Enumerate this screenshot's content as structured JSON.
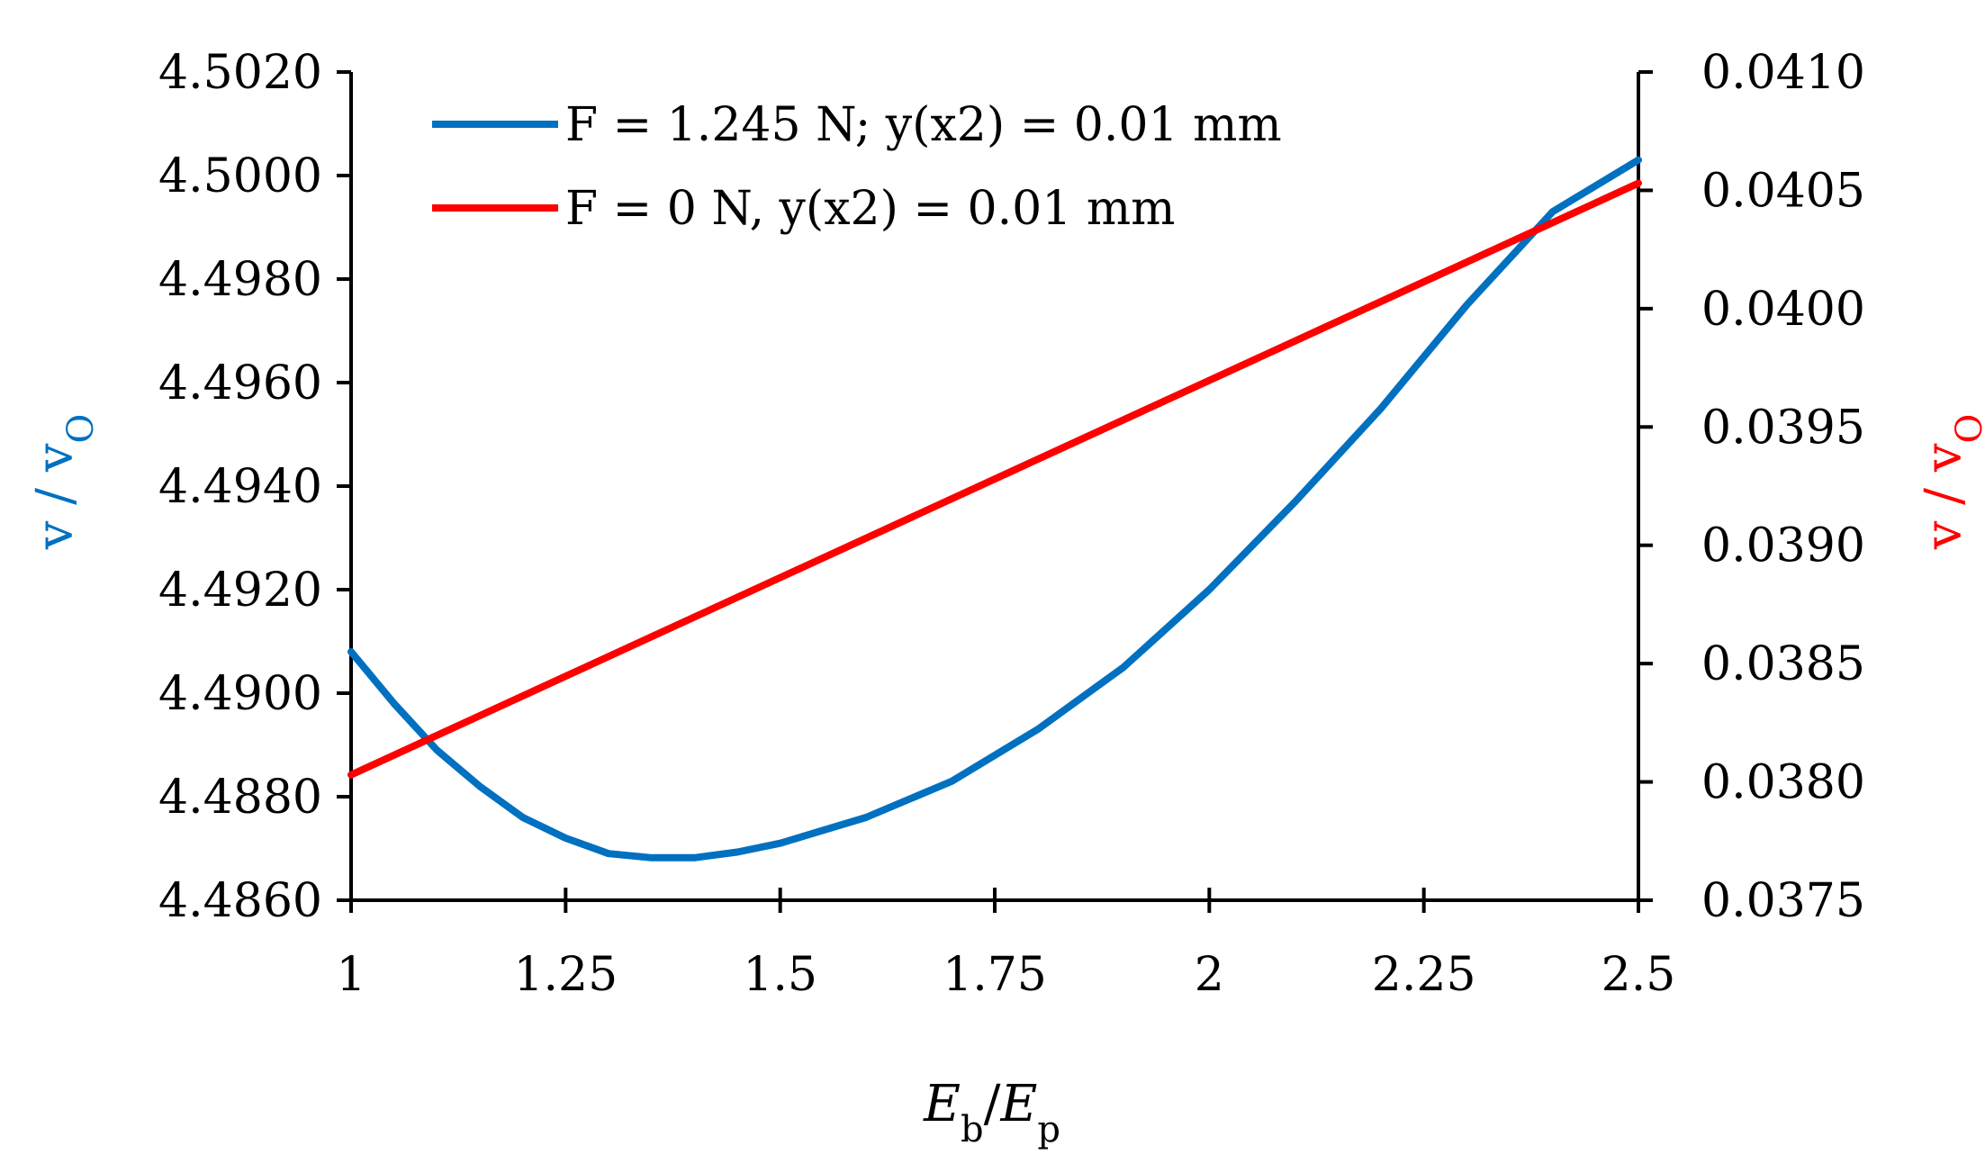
{
  "chart_data": {
    "type": "line",
    "xlabel": {
      "main_1": "E",
      "sub_1": "b",
      "sep": "/",
      "main_2": "E",
      "sub_2": "p"
    },
    "ylabel_left": {
      "main": "v / v",
      "sub": "O",
      "color": "#0070C0"
    },
    "ylabel_right": {
      "main": "v / v",
      "sub": "O",
      "color": "#FF0000"
    },
    "xlim": [
      1,
      2.5
    ],
    "ylim_left": [
      4.486,
      4.502
    ],
    "ylim_right": [
      0.0375,
      0.041
    ],
    "x_ticks": [
      "1",
      "1.25",
      "1.5",
      "1.75",
      "2",
      "2.25",
      "2.5"
    ],
    "x_tick_values": [
      1,
      1.25,
      1.5,
      1.75,
      2,
      2.25,
      2.5
    ],
    "y_left_ticks": [
      "4.4860",
      "4.4880",
      "4.4900",
      "4.4920",
      "4.4940",
      "4.4960",
      "4.4980",
      "4.5000",
      "4.5020"
    ],
    "y_left_tick_values": [
      4.486,
      4.488,
      4.49,
      4.492,
      4.494,
      4.496,
      4.498,
      4.5,
      4.502
    ],
    "y_right_ticks": [
      "0.0375",
      "0.0380",
      "0.0385",
      "0.0390",
      "0.0395",
      "0.0400",
      "0.0405",
      "0.0410"
    ],
    "y_right_tick_values": [
      0.0375,
      0.038,
      0.0385,
      0.039,
      0.0395,
      0.04,
      0.0405,
      0.041
    ],
    "grid": false,
    "legend_position": "top-left",
    "series": [
      {
        "name": "F = 1.245 N; y(x2) = 0.01 mm",
        "color": "#0070C0",
        "axis": "left",
        "x": [
          1.0,
          1.05,
          1.1,
          1.15,
          1.2,
          1.25,
          1.3,
          1.35,
          1.4,
          1.45,
          1.5,
          1.6,
          1.7,
          1.8,
          1.9,
          2.0,
          2.1,
          2.2,
          2.3,
          2.4,
          2.5
        ],
        "y": [
          4.4908,
          4.4898,
          4.4889,
          4.4882,
          4.4876,
          4.4872,
          4.4869,
          4.48682,
          4.48682,
          4.48693,
          4.4871,
          4.4876,
          4.4883,
          4.4893,
          4.4905,
          4.492,
          4.4937,
          4.4955,
          4.4975,
          4.4993,
          4.5003
        ]
      },
      {
        "name": "F = 0 N, y(x2) = 0.01 mm",
        "color": "#FF0000",
        "axis": "right",
        "x": [
          1.0,
          2.5
        ],
        "y": [
          0.03803,
          0.04053
        ]
      }
    ]
  }
}
